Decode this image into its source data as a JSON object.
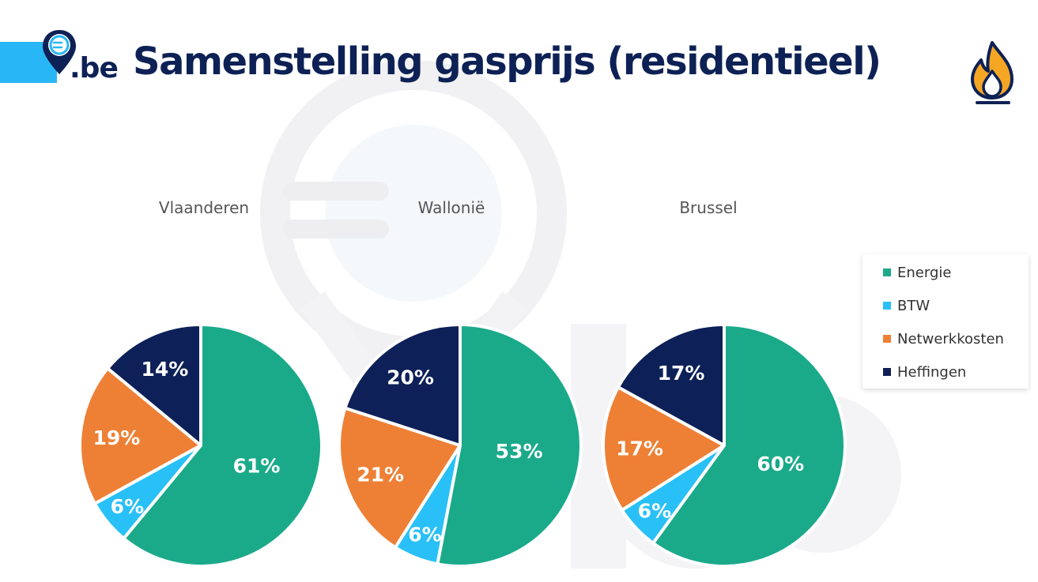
{
  "header": {
    "title": "Samenstelling gasprijs (residentieel)",
    "logo_text": ".be"
  },
  "colors": {
    "brand_dark": "#0d2155",
    "brand_light": "#29b6f6",
    "energie": "#1aaa8a",
    "btw": "#29c0f8",
    "netwerkkosten": "#ee8035",
    "heffingen": "#0d2058"
  },
  "icons": [
    "logo-pin-icon",
    "flame-icon"
  ],
  "legend": {
    "items": [
      {
        "label": "Energie",
        "color": "#1aaa8a"
      },
      {
        "label": "BTW",
        "color": "#29c0f8"
      },
      {
        "label": "Netwerkkosten",
        "color": "#ee8035"
      },
      {
        "label": "Heffingen",
        "color": "#0d2058"
      }
    ]
  },
  "chart_data": [
    {
      "type": "pie",
      "title": "Vlaanderen",
      "categories": [
        "Energie",
        "BTW",
        "Netwerkkosten",
        "Heffingen"
      ],
      "values": [
        61,
        6,
        19,
        14
      ],
      "labels": [
        "61%",
        "6%",
        "19%",
        "14%"
      ],
      "legend": "right"
    },
    {
      "type": "pie",
      "title": "Wallonië",
      "categories": [
        "Energie",
        "BTW",
        "Netwerkkosten",
        "Heffingen"
      ],
      "values": [
        53,
        6,
        21,
        20
      ],
      "labels": [
        "53%",
        "6%",
        "21%",
        "20%"
      ],
      "legend": "right"
    },
    {
      "type": "pie",
      "title": "Brussel",
      "categories": [
        "Energie",
        "BTW",
        "Netwerkkosten",
        "Heffingen"
      ],
      "values": [
        60,
        6,
        17,
        17
      ],
      "labels": [
        "60%",
        "6%",
        "17%",
        "17%"
      ],
      "legend": "right"
    }
  ]
}
